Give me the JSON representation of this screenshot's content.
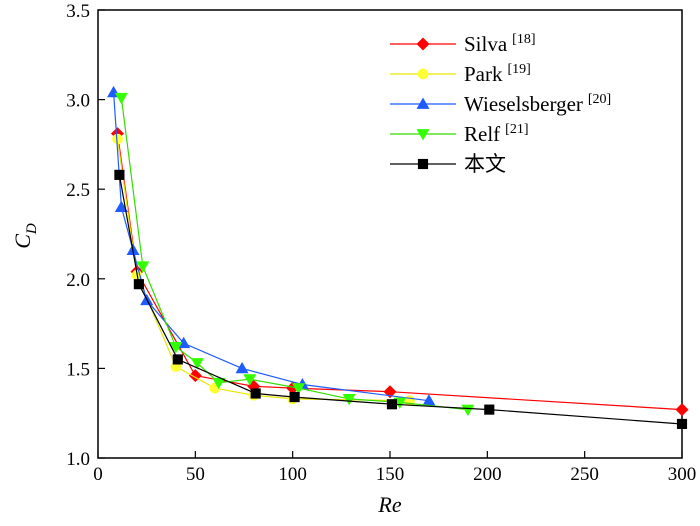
{
  "chart_data": {
    "type": "line",
    "title": "",
    "xlabel": "Re",
    "ylabel_main": "C",
    "ylabel_sub": "D",
    "xlim": [
      0,
      300
    ],
    "ylim": [
      1.0,
      3.5
    ],
    "xticks": [
      0,
      50,
      100,
      150,
      200,
      250,
      300
    ],
    "yticks": [
      1.0,
      1.5,
      2.0,
      2.5,
      3.0,
      3.5
    ],
    "xtick_labels": [
      "0",
      "50",
      "100",
      "150",
      "200",
      "250",
      "300"
    ],
    "ytick_labels": [
      "1.0",
      "1.5",
      "2.0",
      "2.5",
      "3.0",
      "3.5"
    ],
    "grid": false,
    "legend_position": "top-right",
    "series": [
      {
        "name": "Silva",
        "ref": "[18]",
        "marker": "diamond",
        "color": "#ff0000",
        "line_color": "#ff0000",
        "x": [
          10,
          20,
          50,
          80,
          100,
          150,
          300
        ],
        "y": [
          2.81,
          2.04,
          1.46,
          1.4,
          1.39,
          1.37,
          1.27
        ]
      },
      {
        "name": "Park",
        "ref": "[19]",
        "marker": "circle",
        "color": "#ffff33",
        "line_color": "#e6e600",
        "x": [
          10,
          20,
          40,
          60,
          80,
          100,
          160
        ],
        "y": [
          2.78,
          2.02,
          1.51,
          1.39,
          1.35,
          1.33,
          1.32
        ]
      },
      {
        "name": "Wieselsberger",
        "ref": "[20]",
        "marker": "triangle-up",
        "color": "#1e5cff",
        "line_color": "#1e5cff",
        "x": [
          8,
          12,
          18,
          25,
          44,
          74,
          105,
          170
        ],
        "y": [
          3.04,
          2.4,
          2.16,
          1.88,
          1.64,
          1.5,
          1.41,
          1.32
        ]
      },
      {
        "name": "Relf",
        "ref": "[21]",
        "marker": "triangle-down",
        "color": "#33ff00",
        "line_color": "#33dd00",
        "x": [
          12,
          23,
          40,
          51,
          62,
          78,
          103,
          129,
          155,
          190
        ],
        "y": [
          3.01,
          2.07,
          1.62,
          1.53,
          1.42,
          1.44,
          1.39,
          1.33,
          1.31,
          1.27
        ]
      },
      {
        "name": "本文",
        "ref": "",
        "marker": "square",
        "color": "#000000",
        "line_color": "#000000",
        "x": [
          11,
          21,
          41,
          81,
          101,
          151,
          201,
          300
        ],
        "y": [
          2.58,
          1.97,
          1.55,
          1.36,
          1.34,
          1.3,
          1.27,
          1.19
        ]
      }
    ]
  }
}
